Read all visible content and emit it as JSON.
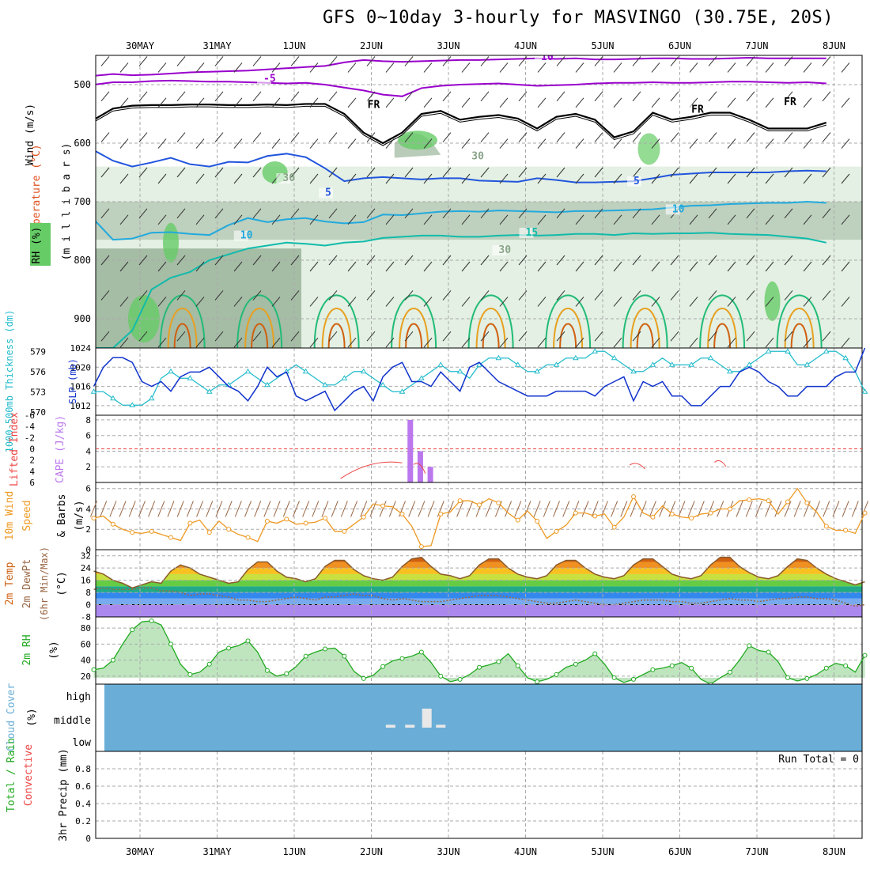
{
  "title": "GFS 0~10day 3-hourly for MASVINGO (30.75E, 20S)",
  "dates": [
    "30MAY",
    "31MAY",
    "1JUN",
    "2JUN",
    "3JUN",
    "4JUN",
    "5JUN",
    "6JUN",
    "7JUN",
    "8JUN"
  ],
  "colors": {
    "rh_dark": "#8aa58a",
    "rh_mid": "#b9ccb9",
    "rh_light": "#e3f0e3",
    "rh_green": "#66cc66",
    "temp_purple": "#9900cc",
    "temp_blue": "#2255dd",
    "temp_lblue": "#22aadd",
    "temp_teal": "#11bbaa",
    "temp_green": "#22bb77",
    "temp_orange": "#e8a020",
    "temp_dkorange": "#d06010",
    "freeze": "#000000",
    "slp": "#1133cc",
    "thickness": "#22bbcc",
    "cape": "#bb77ee",
    "lifted": "#ee4444",
    "wind": "#ee9922",
    "dewpt": "#996644",
    "rh2m": "#22aa22",
    "cloud": "#6aaed8",
    "cloud_bar": "#e8e8e8"
  },
  "chart_data": [
    {
      "id": "upper-air",
      "type": "heatmap",
      "ylabel": "(m i l l i b a r s)",
      "ylabel_parts": [
        "RH (%)",
        "Temperature (°C)",
        "Wind (m/s)"
      ],
      "y_ticks": [
        500,
        600,
        700,
        800,
        900
      ],
      "ylim": [
        450,
        950
      ],
      "y_reversed": true,
      "contour_labels": [
        {
          "text": "10",
          "day": 5.2,
          "p": 458,
          "color": "temp_purple"
        },
        {
          "text": "-5",
          "day": 1.6,
          "p": 495,
          "color": "temp_purple"
        },
        {
          "text": "FR",
          "day": 2.95,
          "p": 540,
          "color": "freeze"
        },
        {
          "text": "FR",
          "day": 7.15,
          "p": 548,
          "color": "freeze"
        },
        {
          "text": "FR",
          "day": 8.35,
          "p": 535,
          "color": "freeze"
        },
        {
          "text": "5",
          "day": 2.4,
          "p": 690,
          "color": "temp_blue"
        },
        {
          "text": "5",
          "day": 6.4,
          "p": 670,
          "color": "temp_blue"
        },
        {
          "text": "10",
          "day": 1.3,
          "p": 763,
          "color": "temp_lblue"
        },
        {
          "text": "10",
          "day": 6.9,
          "p": 718,
          "color": "temp_lblue"
        },
        {
          "text": "15",
          "day": 5.0,
          "p": 758,
          "color": "temp_teal"
        },
        {
          "text": "30",
          "day": 4.3,
          "p": 628,
          "color": "rh_dark"
        },
        {
          "text": "30",
          "day": 4.65,
          "p": 788,
          "color": "rh_dark"
        },
        {
          "text": "30",
          "day": 1.85,
          "p": 665,
          "color": "rh_dark"
        }
      ],
      "isotherms": [
        {
          "name": "-10",
          "color": "temp_purple",
          "p": [
            485,
            482,
            484,
            483,
            481,
            479,
            478,
            477,
            476,
            474,
            472,
            470,
            468,
            462,
            458,
            460,
            461,
            460,
            459,
            458,
            458,
            457,
            456,
            455,
            456,
            455,
            457,
            457,
            456,
            455,
            455,
            456,
            456,
            455,
            454,
            455,
            455,
            455,
            455
          ]
        },
        {
          "name": "-5",
          "color": "temp_purple",
          "p": [
            500,
            496,
            496,
            494,
            493,
            494,
            495,
            495,
            496,
            497,
            498,
            497,
            500,
            505,
            510,
            517,
            520,
            506,
            502,
            500,
            499,
            498,
            500,
            502,
            501,
            500,
            498,
            497,
            497,
            496,
            497,
            497,
            496,
            495,
            495,
            496,
            497,
            496,
            498
          ]
        },
        {
          "name": "FR",
          "color": "freeze",
          "p": [
            560,
            541,
            536,
            535,
            535,
            534,
            534,
            535,
            535,
            534,
            535,
            533,
            533,
            550,
            582,
            600,
            582,
            550,
            545,
            560,
            555,
            552,
            558,
            575,
            555,
            550,
            560,
            590,
            580,
            548,
            560,
            555,
            548,
            548,
            560,
            575,
            575,
            575,
            565
          ]
        },
        {
          "name": "5",
          "color": "temp_blue",
          "p": [
            612,
            630,
            640,
            633,
            625,
            636,
            640,
            632,
            633,
            622,
            618,
            624,
            643,
            665,
            660,
            658,
            660,
            662,
            660,
            660,
            664,
            665,
            666,
            660,
            663,
            667,
            667,
            666,
            665,
            660,
            654,
            652,
            650,
            650,
            650,
            650,
            648,
            647,
            648
          ]
        },
        {
          "name": "10",
          "color": "temp_lblue",
          "p": [
            730,
            765,
            763,
            753,
            752,
            755,
            757,
            740,
            728,
            735,
            730,
            728,
            734,
            737,
            735,
            722,
            723,
            720,
            717,
            716,
            717,
            715,
            716,
            717,
            718,
            716,
            716,
            715,
            714,
            713,
            710,
            707,
            706,
            704,
            703,
            702,
            702,
            700,
            702
          ]
        },
        {
          "name": "15",
          "color": "temp_teal",
          "p": [
            950,
            950,
            920,
            850,
            830,
            820,
            800,
            790,
            780,
            775,
            770,
            772,
            775,
            770,
            768,
            762,
            760,
            758,
            758,
            760,
            760,
            758,
            757,
            758,
            757,
            755,
            755,
            757,
            754,
            755,
            754,
            754,
            753,
            755,
            756,
            757,
            760,
            763,
            770
          ]
        }
      ],
      "wind_barbs_rows_hPa": [
        460,
        520,
        590,
        650,
        720,
        800,
        860,
        930
      ]
    },
    {
      "id": "slp-thickness",
      "type": "line",
      "ylabel_left": "1000-500mb Thickness (dm)",
      "ylabel_right": "SLP (mb)",
      "left_ticks": [
        570,
        573,
        576,
        579
      ],
      "right_ticks": [
        1012,
        1016,
        1020,
        1024
      ],
      "series": [
        {
          "name": "SLP (mb)",
          "color": "slp",
          "values": [
            1016,
            1020,
            1022,
            1022,
            1021,
            1017,
            1016,
            1017,
            1015,
            1018,
            1019,
            1019,
            1020,
            1018,
            1016,
            1015,
            1013,
            1016,
            1020,
            1018,
            1019,
            1014,
            1013,
            1014,
            1015,
            1011,
            1013,
            1015,
            1016,
            1013,
            1018,
            1020,
            1021,
            1017,
            1017,
            1016,
            1019,
            1017,
            1015,
            1020,
            1021,
            1019,
            1017,
            1016,
            1015,
            1014,
            1014,
            1014,
            1015,
            1015,
            1015,
            1015,
            1014,
            1016,
            1017,
            1018,
            1013,
            1017,
            1016,
            1017,
            1014,
            1014,
            1012,
            1012,
            1014,
            1016,
            1016,
            1019,
            1020,
            1019,
            1017,
            1016,
            1014,
            1014,
            1016,
            1016,
            1016,
            1018,
            1019,
            1019,
            1024
          ]
        },
        {
          "name": "Thickness (dm)",
          "color": "thickness",
          "values": [
            573,
            573,
            572,
            571,
            571,
            571,
            572,
            575,
            576,
            575,
            575,
            574,
            573,
            574,
            574,
            575,
            576,
            575,
            574,
            575,
            576,
            577,
            576,
            575,
            574,
            574,
            575,
            576,
            576,
            575,
            574,
            573,
            573,
            574,
            575,
            576,
            577,
            576,
            576,
            575,
            577,
            578,
            578,
            578,
            577,
            576,
            576,
            577,
            577,
            578,
            578,
            578,
            579,
            579,
            578,
            577,
            576,
            576,
            577,
            578,
            577,
            577,
            577,
            578,
            578,
            577,
            576,
            576,
            577,
            578,
            579,
            579,
            579,
            577,
            577,
            578,
            579,
            579,
            578,
            576,
            573
          ]
        }
      ]
    },
    {
      "id": "cape-lifted",
      "type": "bar",
      "ylabel_left": "Lifted Index",
      "ylabel_right": "CAPE (J/kg)",
      "left_ticks": [
        "-6",
        "-4",
        "-2",
        "0",
        "2",
        "4",
        "6"
      ],
      "right_ticks": [
        2,
        4,
        6,
        8
      ],
      "cape_bars": [
        {
          "day": 3.5,
          "value": 8
        },
        {
          "day": 3.63,
          "value": 4
        },
        {
          "day": 3.76,
          "value": 2
        }
      ],
      "lifted_index": [
        {
          "day": 2.6,
          "value": 5.3
        },
        {
          "day": 3.4,
          "value": 2.5
        },
        {
          "day": 3.55,
          "value": 2.8
        },
        {
          "day": 3.7,
          "value": 4.4
        },
        {
          "day": 6.35,
          "value": 2.9
        },
        {
          "day": 6.55,
          "value": 3.6
        },
        {
          "day": 7.45,
          "value": 2.4
        },
        {
          "day": 7.6,
          "value": 3.2
        }
      ]
    },
    {
      "id": "wind-10m",
      "type": "line",
      "ylabel": "10m Wind Speed & Barbs (m/s)",
      "y_ticks": [
        0,
        2,
        4,
        6
      ],
      "series": [
        {
          "name": "10m wind speed",
          "color": "wind",
          "values": [
            3.1,
            3.3,
            2.5,
            2.0,
            1.7,
            1.6,
            1.8,
            1.5,
            1.2,
            0.9,
            2.6,
            2.9,
            1.7,
            2.8,
            2.0,
            1.5,
            1.2,
            0.8,
            2.8,
            2.6,
            3.0,
            2.5,
            2.6,
            2.7,
            3.1,
            1.8,
            1.8,
            2.5,
            3.2,
            4.5,
            4.3,
            4.2,
            3.5,
            2.3,
            0.3,
            0.4,
            3.5,
            3.7,
            4.8,
            4.8,
            4.4,
            5.0,
            4.6,
            3.6,
            2.9,
            3.8,
            2.8,
            1.1,
            1.8,
            2.4,
            3.6,
            3.6,
            3.3,
            3.5,
            2.2,
            3.2,
            5.2,
            3.6,
            3.2,
            4.3,
            3.5,
            3.2,
            3.1,
            3.5,
            3.6,
            4.0,
            4.0,
            4.8,
            4.9,
            5.0,
            4.8,
            3.5,
            4.7,
            6.0,
            4.6,
            3.7,
            2.3,
            1.9,
            1.9,
            1.6,
            3.6
          ]
        }
      ]
    },
    {
      "id": "temp-2m",
      "type": "area",
      "ylabel": "2m Temp 2m DewPt (6hr Min/Max) (°C)",
      "y_ticks": [
        -8,
        0,
        8,
        16,
        24,
        32
      ],
      "series": [
        {
          "name": "2m temperature",
          "color": "temp_orange",
          "values": [
            22,
            20,
            16,
            14,
            11,
            13,
            15,
            14,
            22,
            26,
            24,
            20,
            18,
            16,
            14,
            15,
            23,
            28,
            28,
            22,
            18,
            17,
            15,
            17,
            25,
            29,
            29,
            23,
            19,
            17,
            16,
            18,
            25,
            30,
            31,
            25,
            20,
            19,
            17,
            19,
            26,
            30,
            30,
            24,
            20,
            18,
            17,
            19,
            26,
            29,
            29,
            24,
            20,
            18,
            17,
            19,
            26,
            30,
            30,
            25,
            20,
            18,
            17,
            19,
            26,
            31,
            31,
            25,
            21,
            18,
            17,
            19,
            25,
            30,
            29,
            24,
            20,
            17,
            15,
            13,
            15
          ]
        },
        {
          "name": "2m dew point",
          "color": "dewpt",
          "values": [
            10,
            11,
            10,
            10,
            10,
            11,
            11,
            9,
            9,
            8,
            6,
            7,
            7,
            6,
            5,
            3,
            3,
            2,
            2,
            3,
            4,
            5,
            4,
            3,
            5,
            5,
            6,
            7,
            6,
            6,
            4,
            3,
            4,
            3,
            2,
            2,
            2,
            3,
            4,
            5,
            6,
            6,
            6,
            5,
            4,
            3,
            2,
            1,
            1,
            2,
            3,
            2,
            1,
            0,
            0,
            1,
            2,
            3,
            3,
            3,
            2,
            2,
            1,
            1,
            2,
            3,
            4,
            3,
            3,
            2,
            3,
            4,
            4,
            5,
            5,
            4,
            4,
            3,
            1,
            -1,
            0
          ]
        }
      ]
    },
    {
      "id": "rh-2m",
      "type": "area",
      "ylabel": "2m RH (%)",
      "y_ticks": [
        20,
        40,
        60,
        80
      ],
      "series": [
        {
          "name": "2m RH",
          "color": "rh2m",
          "values": [
            28,
            30,
            40,
            60,
            78,
            88,
            89,
            84,
            60,
            35,
            22,
            25,
            35,
            50,
            55,
            58,
            64,
            50,
            27,
            20,
            23,
            32,
            45,
            50,
            54,
            55,
            45,
            26,
            17,
            21,
            32,
            39,
            42,
            45,
            50,
            37,
            20,
            13,
            16,
            22,
            31,
            34,
            38,
            48,
            33,
            18,
            13,
            16,
            22,
            31,
            35,
            40,
            48,
            35,
            18,
            12,
            16,
            22,
            28,
            30,
            33,
            37,
            30,
            16,
            10,
            18,
            25,
            40,
            58,
            52,
            50,
            38,
            18,
            14,
            17,
            22,
            30,
            36,
            33,
            25,
            46
          ]
        }
      ]
    },
    {
      "id": "cloud-cover",
      "type": "bar",
      "ylabel": "Cloud Cover (%)",
      "levels": [
        "high",
        "middle",
        "low"
      ],
      "bars": [
        {
          "day": 3.25,
          "level": "middle",
          "value": 0.15
        },
        {
          "day": 3.5,
          "level": "middle",
          "value": 0.15
        },
        {
          "day": 3.72,
          "level": "middle",
          "value": 1.0
        },
        {
          "day": 3.9,
          "level": "middle",
          "value": 0.15
        }
      ]
    },
    {
      "id": "precip-3hr",
      "type": "bar",
      "ylabel": "3hr Precip (mm)",
      "legend_parts": [
        "Total / Rain",
        "Convective"
      ],
      "y_ticks": [
        0,
        0.2,
        0.4,
        0.6,
        0.8
      ],
      "ylim": [
        0,
        1.0
      ],
      "values": [],
      "annotation": "Run Total = 0"
    }
  ]
}
